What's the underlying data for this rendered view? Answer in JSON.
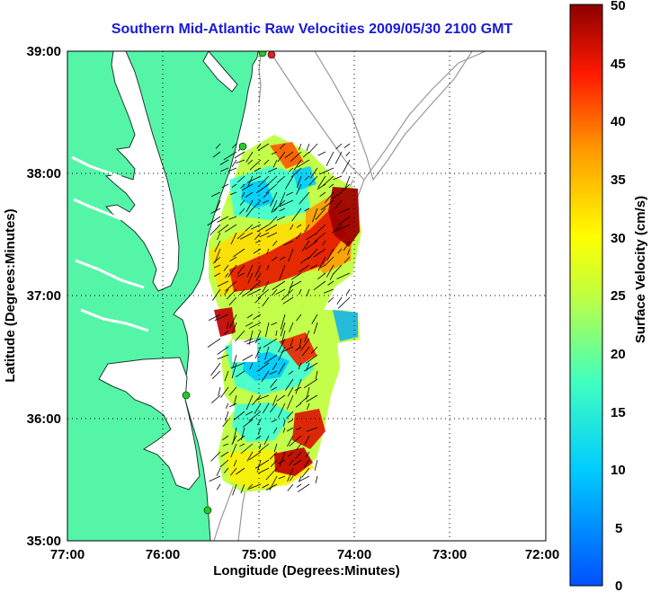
{
  "title": "Southern Mid-Atlantic Raw Velocities 2009/05/30 2100 GMT",
  "xaxis": {
    "label": "Longitude (Degrees:Minutes)",
    "ticks": [
      "77:00",
      "76:00",
      "75:00",
      "74:00",
      "73:00",
      "72:00"
    ],
    "range_deg_west": [
      77,
      72
    ]
  },
  "yaxis": {
    "label": "Latitude (Degrees:Minutes)",
    "ticks": [
      "39:00",
      "38:00",
      "37:00",
      "36:00",
      "35:00"
    ],
    "range_deg_north": [
      35,
      39
    ]
  },
  "colorbar": {
    "label": "Surface Velocity (cm/s)",
    "ticks": [
      "50",
      "45",
      "40",
      "35",
      "30",
      "25",
      "20",
      "15",
      "10",
      "5",
      "0"
    ],
    "range": [
      0,
      50
    ]
  },
  "colors": {
    "land": "#55f5a8",
    "title": "#1a1ad6",
    "station": "#22cc22",
    "station_active": "#dd2222"
  },
  "grid": "dotted"
}
